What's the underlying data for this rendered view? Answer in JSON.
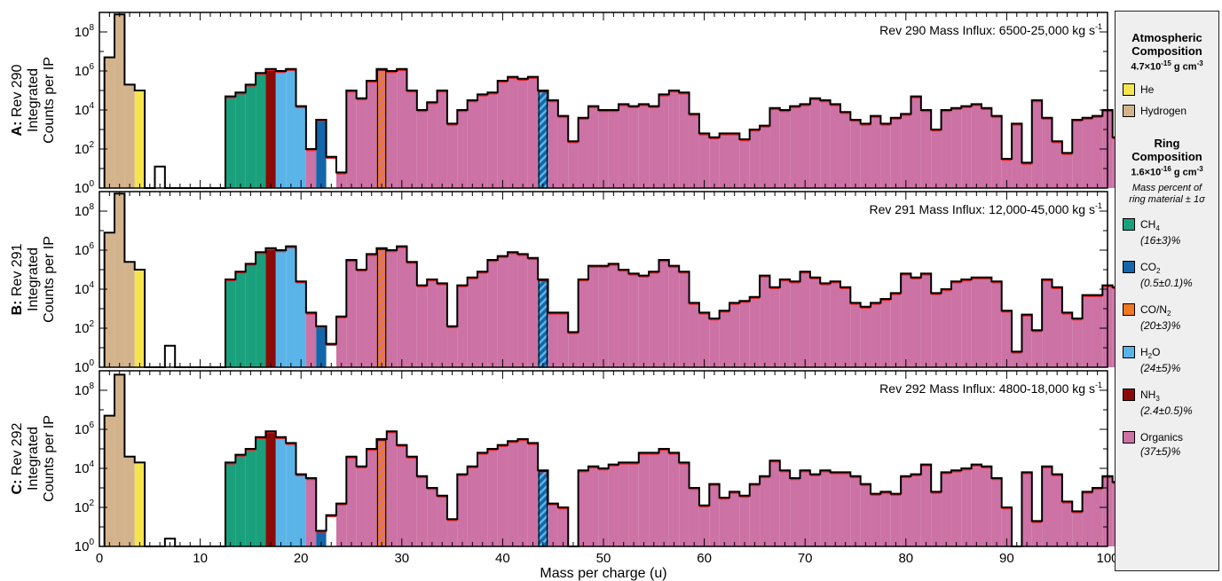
{
  "chart_data": {
    "type": "bar",
    "xlabel": "Mass per charge (u)",
    "xlim": [
      0,
      100
    ],
    "ylim_exponent": [
      0,
      9
    ],
    "y_scale": "log",
    "x_ticks": [
      "0",
      "10",
      "20",
      "30",
      "40",
      "50",
      "60",
      "70",
      "80",
      "90",
      "100"
    ],
    "y_ticks": [
      {
        "base": "10",
        "exp": "0"
      },
      {
        "base": "10",
        "exp": "2"
      },
      {
        "base": "10",
        "exp": "4"
      },
      {
        "base": "10",
        "exp": "6"
      },
      {
        "base": "10",
        "exp": "8"
      }
    ],
    "panels": [
      {
        "ylabel_prefix": "A:",
        "ylabel_rev": "Rev 290",
        "ylabel_line2": "Integrated",
        "ylabel_line3": "Counts per IP",
        "annotation": "Rev 290 Mass Influx: 6500-25,000 kg s",
        "annotation_sup": "-1",
        "log_values": [
          6.7,
          8.9,
          5.3,
          5.0,
          0,
          1.1,
          0,
          0,
          0,
          0,
          0,
          0,
          4.7,
          4.9,
          5.3,
          5.9,
          6.1,
          6.0,
          6.1,
          4.2,
          2.0,
          3.5,
          1.6,
          0.8,
          5.0,
          4.6,
          5.5,
          6.1,
          6.0,
          6.1,
          5.0,
          4.0,
          4.4,
          5.0,
          3.3,
          4.0,
          4.5,
          4.8,
          4.9,
          5.5,
          5.7,
          5.6,
          5.7,
          5.0,
          4.5,
          3.7,
          2.4,
          3.6,
          4.2,
          4.0,
          4.0,
          4.3,
          4.2,
          4.3,
          4.2,
          4.8,
          5.0,
          4.9,
          3.8,
          2.8,
          2.6,
          2.8,
          2.8,
          2.5,
          3.0,
          3.2,
          4.1,
          4.0,
          4.2,
          4.3,
          4.6,
          4.5,
          4.3,
          3.9,
          3.5,
          3.3,
          3.7,
          3.3,
          3.6,
          3.8,
          4.7,
          4.0,
          3.0,
          4.0,
          4.1,
          4.2,
          4.3,
          4.1,
          3.7,
          1.5,
          3.3,
          1.3,
          4.5,
          3.6,
          2.4,
          1.8,
          3.5,
          3.6,
          3.7,
          4.0,
          2.6
        ]
      },
      {
        "ylabel_prefix": "B:",
        "ylabel_rev": "Rev 291",
        "ylabel_line2": "Integrated",
        "ylabel_line3": "Counts per IP",
        "annotation": "Rev 291 Mass Influx: 12,000-45,000 kg s",
        "annotation_sup": "-1",
        "log_values": [
          6.9,
          8.9,
          5.4,
          5.0,
          0,
          0,
          1.1,
          0,
          0,
          0,
          0,
          0,
          4.5,
          4.9,
          5.3,
          5.9,
          6.1,
          6.0,
          6.2,
          4.4,
          2.8,
          2.1,
          1.2,
          2.6,
          5.5,
          5.0,
          5.8,
          6.1,
          6.0,
          6.2,
          5.4,
          4.2,
          4.5,
          4.3,
          2.1,
          4.2,
          4.6,
          4.9,
          5.5,
          5.7,
          5.9,
          5.8,
          5.6,
          4.5,
          2.8,
          2.8,
          1.8,
          4.5,
          5.2,
          5.2,
          5.3,
          5.0,
          4.8,
          4.7,
          4.9,
          5.5,
          5.2,
          4.9,
          3.3,
          2.8,
          2.5,
          2.9,
          3.3,
          3.4,
          3.6,
          4.7,
          4.1,
          4.5,
          4.4,
          4.9,
          4.6,
          4.3,
          4.4,
          4.1,
          3.3,
          3.1,
          3.3,
          3.5,
          3.8,
          4.8,
          4.6,
          4.8,
          3.8,
          4.0,
          4.4,
          4.5,
          4.6,
          4.6,
          4.4,
          2.9,
          0.8,
          2.7,
          1.9,
          4.5,
          4.1,
          2.8,
          2.5,
          3.7,
          3.7,
          4.2,
          4.1,
          3.0
        ]
      },
      {
        "ylabel_prefix": "C:",
        "ylabel_rev": "Rev 292",
        "ylabel_line2": "Integrated",
        "ylabel_line3": "Counts per IP",
        "annotation": "Rev 292 Mass Influx: 4800-18,000 kg s",
        "annotation_sup": "-1",
        "log_values": [
          6.7,
          8.8,
          4.6,
          4.3,
          0,
          0,
          0.4,
          0,
          0,
          0,
          0,
          0,
          4.3,
          4.7,
          5.0,
          5.6,
          5.9,
          5.6,
          5.3,
          3.7,
          3.5,
          0.8,
          1.6,
          2.2,
          4.6,
          4.1,
          5.0,
          5.5,
          5.9,
          5.2,
          4.6,
          3.6,
          3.0,
          2.6,
          1.4,
          3.7,
          4.1,
          4.8,
          5.0,
          5.2,
          5.4,
          5.5,
          5.3,
          3.9,
          2.2,
          2.0,
          0,
          3.9,
          4.1,
          4.0,
          4.2,
          4.3,
          4.3,
          4.8,
          4.8,
          5.0,
          4.8,
          4.3,
          3.0,
          2.1,
          3.2,
          2.5,
          2.8,
          2.6,
          3.2,
          3.6,
          4.4,
          3.9,
          3.5,
          3.9,
          3.7,
          3.9,
          3.8,
          3.8,
          3.6,
          3.2,
          2.7,
          2.8,
          2.7,
          3.6,
          3.7,
          4.2,
          2.8,
          3.8,
          3.9,
          4.0,
          4.2,
          4.1,
          3.5,
          2.0,
          0,
          3.8,
          1.3,
          4.1,
          3.7,
          2.3,
          1.8,
          2.8,
          3.0,
          3.6,
          3.3,
          2.2
        ]
      }
    ],
    "colors": {
      "hydrogen": "#d3b38c",
      "he": "#f5e44d",
      "ch4": "#1aa07c",
      "co2": "#1466aa",
      "con2": "#f07822",
      "h2o": "#5ab4e8",
      "nh3": "#8a0a0a",
      "organics": "#cc72a4",
      "errorbar": "#e02020"
    }
  },
  "legend": {
    "atm_title_1": "Atmospheric",
    "atm_title_2": "Composition",
    "atm_dens_base": "4.7×10",
    "atm_dens_exp": "-15",
    "atm_dens_unit": " g cm",
    "atm_dens_unit_exp": "-3",
    "he": "He",
    "hydrogen": "Hydrogen",
    "ring_title_1": "Ring",
    "ring_title_2": "Composition",
    "ring_dens_base": "1.6×10",
    "ring_dens_exp": "-16",
    "ring_dens_unit": " g cm",
    "ring_dens_unit_exp": "-3",
    "note_1": "Mass percent of",
    "note_2": "ring material ± 1σ",
    "items": [
      {
        "main": "CH",
        "sub": "4",
        "tail": "",
        "pct": "(16±3)%",
        "color_key": "ch4"
      },
      {
        "main": "CO",
        "sub": "2",
        "tail": "",
        "pct": "(0.5±0.1)%",
        "color_key": "co2"
      },
      {
        "main": "CO/N",
        "sub": "2",
        "tail": "",
        "pct": "(20±3)%",
        "color_key": "con2"
      },
      {
        "main": "H",
        "sub": "2",
        "tail": "O",
        "pct": "(24±5)%",
        "color_key": "h2o"
      },
      {
        "main": "NH",
        "sub": "3",
        "tail": "",
        "pct": "(2.4±0.5)%",
        "color_key": "nh3"
      },
      {
        "main": "Organics",
        "sub": "",
        "tail": "",
        "pct": "(37±5)%",
        "color_key": "organics"
      }
    ]
  }
}
